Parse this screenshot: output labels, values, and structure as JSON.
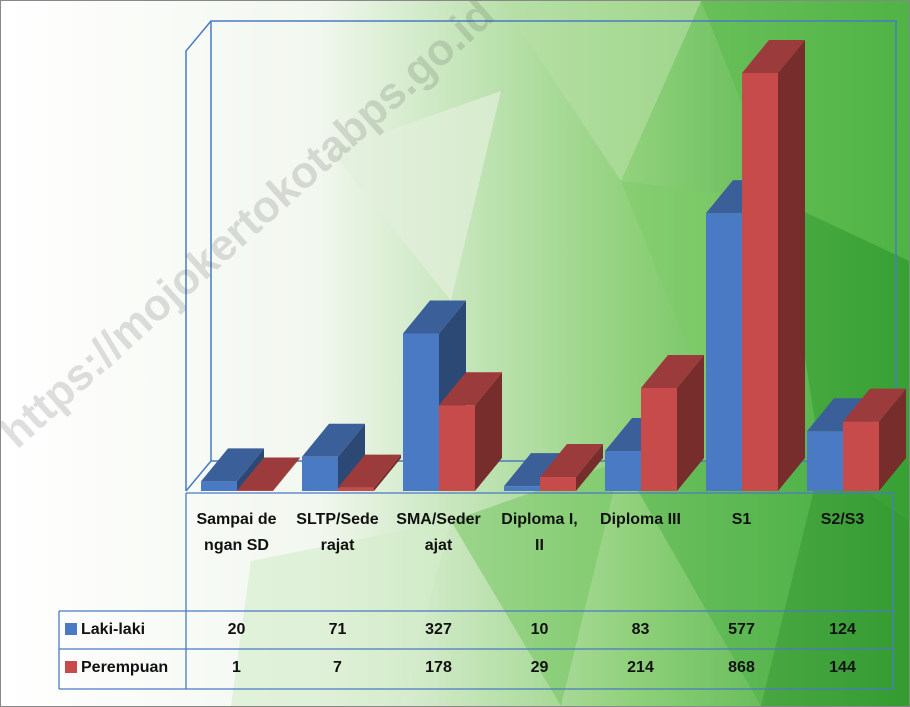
{
  "chart_data": {
    "type": "bar3d",
    "categories": [
      "Sampai dengan SD",
      "SLTP/Sederajat",
      "SMA/Sederajat",
      "Diploma I, II",
      "Diploma III",
      "S1",
      "S2/S3"
    ],
    "series": [
      {
        "name": "Laki-laki",
        "color": "#4a7ac4",
        "values": [
          20,
          71,
          327,
          10,
          83,
          577,
          124
        ]
      },
      {
        "name": "Perempuan",
        "color": "#c84b4b",
        "values": [
          1,
          7,
          178,
          29,
          214,
          868,
          144
        ]
      }
    ],
    "watermark": "https://mojokertokotabps.go.id"
  }
}
